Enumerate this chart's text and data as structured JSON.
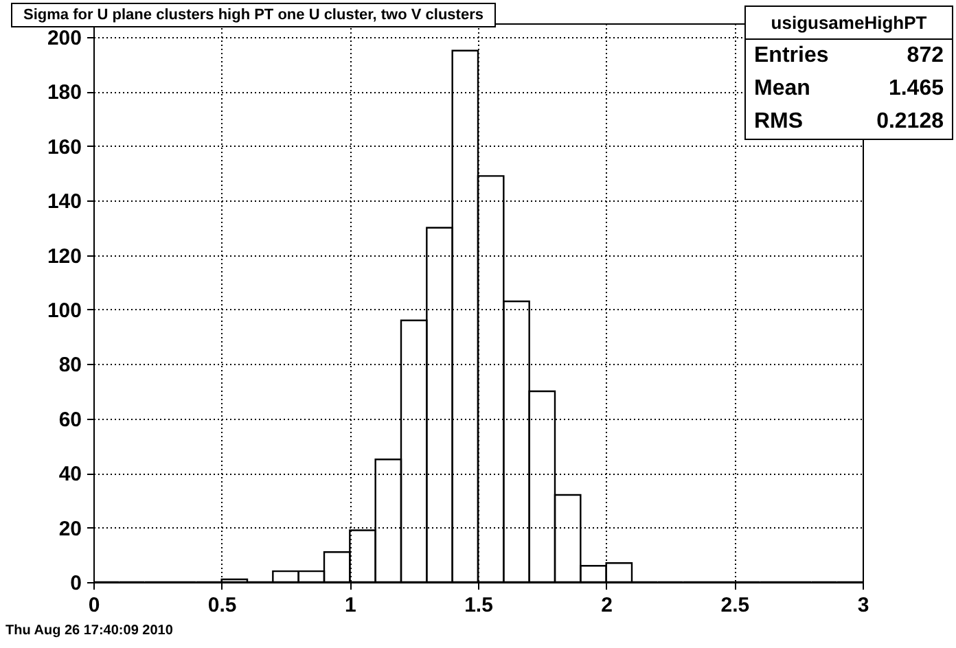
{
  "chart_data": {
    "type": "histogram",
    "title": "Sigma for U plane clusters high PT one U cluster, two V clusters",
    "bins": [
      0,
      0.1,
      0.2,
      0.3,
      0.4,
      0.5,
      0.6,
      0.7,
      0.8,
      0.9,
      1.0,
      1.1,
      1.2,
      1.3,
      1.4,
      1.5,
      1.6,
      1.7,
      1.8,
      1.9,
      2.0,
      2.1,
      2.2,
      2.3,
      2.4,
      2.5,
      2.6,
      2.7,
      2.8,
      2.9,
      3.0
    ],
    "values": [
      0,
      0,
      0,
      0,
      0,
      1,
      0,
      4,
      4,
      11,
      19,
      45,
      96,
      130,
      195,
      149,
      103,
      70,
      32,
      6,
      7,
      0,
      0,
      0,
      0,
      0,
      0,
      0,
      0,
      0
    ],
    "color": "#000000",
    "xlim": [
      0,
      3
    ],
    "xticks": [
      0,
      0.5,
      1,
      1.5,
      2,
      2.5,
      3
    ],
    "ylim": [
      0,
      205
    ],
    "yticks": [
      0,
      20,
      40,
      60,
      80,
      100,
      120,
      140,
      160,
      180,
      200
    ],
    "grid": true,
    "annotations": [
      "usigusameHighPT",
      "Entries",
      "872",
      "Mean",
      "1.465",
      "RMS",
      "0.2128",
      "Thu Aug 26 17:40:09 2010"
    ]
  }
}
